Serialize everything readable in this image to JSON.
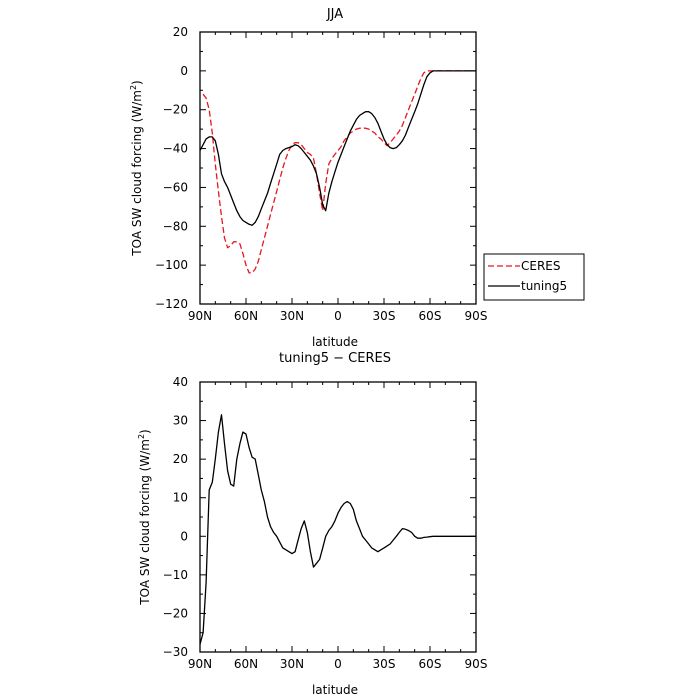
{
  "chart_data": [
    {
      "type": "line",
      "title": "JJA",
      "xlabel": "latitude",
      "ylabel_main": "TOA SW cloud forcing (W/m",
      "ylabel_sup": "2",
      "ylabel_close": ")",
      "xlim": [
        90,
        -90
      ],
      "ylim": [
        -120,
        20
      ],
      "x_tick_values": [
        90,
        60,
        30,
        0,
        -30,
        -60,
        -90
      ],
      "x_tick_labels": [
        "90N",
        "60N",
        "30N",
        "0",
        "30S",
        "60S",
        "90S"
      ],
      "y_tick_values": [
        20,
        0,
        -20,
        -40,
        -60,
        -80,
        -100,
        -120
      ],
      "y_tick_labels": [
        "20",
        "0",
        "−20",
        "−40",
        "−60",
        "−80",
        "−100",
        "−120"
      ],
      "legend_position": "right",
      "series": [
        {
          "name": "CERES",
          "color": "#e8161b",
          "dash": "dashed",
          "x": [
            88,
            86,
            84,
            82,
            80,
            78,
            76,
            74,
            72,
            70,
            68,
            66,
            64,
            62,
            60,
            58,
            56,
            54,
            52,
            50,
            48,
            46,
            44,
            42,
            40,
            38,
            36,
            34,
            32,
            30,
            28,
            26,
            24,
            22,
            20,
            18,
            16,
            14,
            12,
            10,
            8,
            6,
            4,
            2,
            0,
            -2,
            -4,
            -6,
            -8,
            -10,
            -12,
            -14,
            -16,
            -18,
            -20,
            -22,
            -24,
            -26,
            -28,
            -30,
            -32,
            -34,
            -36,
            -38,
            -40,
            -42,
            -44,
            -46,
            -48,
            -50,
            -52,
            -54,
            -56,
            -58,
            -60,
            -62,
            -64,
            -66,
            -68,
            -70,
            -72,
            -74,
            -76,
            -78,
            -80,
            -82,
            -84,
            -86,
            -88
          ],
          "y": [
            -12,
            -14,
            -20,
            -32,
            -48,
            -62,
            -75,
            -86,
            -91,
            -90,
            -88,
            -88,
            -89,
            -94,
            -100,
            -104,
            -104,
            -102,
            -98,
            -92,
            -86,
            -80,
            -74,
            -68,
            -62,
            -56,
            -50,
            -45,
            -41,
            -38,
            -37,
            -37,
            -38,
            -40,
            -42,
            -43,
            -45,
            -53,
            -63,
            -72,
            -58,
            -48,
            -45,
            -43,
            -41,
            -39,
            -36,
            -34,
            -32,
            -31,
            -30,
            -29.5,
            -29.5,
            -29.5,
            -30,
            -31,
            -32,
            -34,
            -35,
            -37,
            -38.5,
            -37,
            -35,
            -33,
            -31,
            -28,
            -24,
            -20,
            -16,
            -12,
            -8,
            -4,
            -1,
            0,
            0,
            0,
            0,
            0,
            0,
            0,
            0,
            0,
            0,
            0,
            0,
            0,
            0,
            0,
            0
          ]
        },
        {
          "name": "tuning5",
          "color": "#000000",
          "dash": "solid",
          "x": [
            90,
            88,
            86,
            84,
            82,
            80,
            78,
            76,
            74,
            72,
            70,
            68,
            66,
            64,
            62,
            60,
            58,
            56,
            54,
            52,
            50,
            48,
            46,
            44,
            42,
            40,
            38,
            36,
            34,
            32,
            30,
            28,
            26,
            24,
            22,
            20,
            18,
            16,
            14,
            12,
            10,
            8,
            6,
            4,
            2,
            0,
            -2,
            -4,
            -6,
            -8,
            -10,
            -12,
            -14,
            -16,
            -18,
            -20,
            -22,
            -24,
            -26,
            -28,
            -30,
            -32,
            -34,
            -36,
            -38,
            -40,
            -42,
            -44,
            -46,
            -48,
            -50,
            -52,
            -54,
            -56,
            -58,
            -60,
            -62,
            -64,
            -66,
            -68,
            -70,
            -72,
            -74,
            -76,
            -78,
            -80,
            -82,
            -84,
            -86,
            -88,
            -90
          ],
          "y": [
            -41,
            -38,
            -35,
            -34,
            -34,
            -36,
            -43,
            -53,
            -57,
            -60,
            -64,
            -68,
            -72,
            -75,
            -77,
            -78,
            -79,
            -79.5,
            -78,
            -75,
            -71,
            -67,
            -63,
            -58,
            -53,
            -48,
            -43,
            -41,
            -40,
            -39.5,
            -39,
            -38,
            -38.5,
            -40,
            -42,
            -44,
            -46,
            -49,
            -53,
            -60,
            -69,
            -72,
            -63,
            -57,
            -52,
            -47,
            -43,
            -39,
            -35,
            -31,
            -28,
            -25,
            -23,
            -22,
            -21,
            -21,
            -22,
            -24,
            -27,
            -31,
            -35,
            -38,
            -39.5,
            -40,
            -39.5,
            -38,
            -36,
            -33,
            -29,
            -25,
            -21,
            -17,
            -12,
            -7,
            -3,
            -1,
            0,
            0,
            0,
            0,
            0,
            0,
            0,
            0,
            0,
            0,
            0,
            0,
            0,
            0,
            0
          ]
        }
      ]
    },
    {
      "type": "line",
      "title": "tuning5 − CERES",
      "xlabel": "latitude",
      "ylabel_main": "TOA SW cloud forcing (W/m",
      "ylabel_sup": "2",
      "ylabel_close": ")",
      "xlim": [
        90,
        -90
      ],
      "ylim": [
        -30,
        40
      ],
      "x_tick_values": [
        90,
        60,
        30,
        0,
        -30,
        -60,
        -90
      ],
      "x_tick_labels": [
        "90N",
        "60N",
        "30N",
        "0",
        "30S",
        "60S",
        "90S"
      ],
      "y_tick_values": [
        40,
        30,
        20,
        10,
        0,
        -10,
        -20,
        -30
      ],
      "y_tick_labels": [
        "40",
        "30",
        "20",
        "10",
        "0",
        "−10",
        "−20",
        "−30"
      ],
      "series": [
        {
          "name": "",
          "color": "#000000",
          "dash": "solid",
          "x": [
            90,
            88,
            86,
            84,
            82,
            80,
            78,
            76,
            74,
            72,
            70,
            68,
            66,
            64,
            62,
            60,
            58,
            56,
            54,
            52,
            50,
            48,
            46,
            44,
            42,
            40,
            38,
            36,
            34,
            32,
            30,
            28,
            26,
            24,
            22,
            20,
            18,
            16,
            14,
            12,
            10,
            8,
            6,
            4,
            2,
            0,
            -2,
            -4,
            -6,
            -8,
            -10,
            -12,
            -14,
            -16,
            -18,
            -20,
            -22,
            -24,
            -26,
            -28,
            -30,
            -32,
            -34,
            -36,
            -38,
            -40,
            -42,
            -44,
            -46,
            -48,
            -50,
            -52,
            -54,
            -56,
            -58,
            -60,
            -62,
            -64,
            -66,
            -68,
            -70,
            -72,
            -74,
            -76,
            -78,
            -80,
            -82,
            -84,
            -86,
            -88,
            -90
          ],
          "y": [
            -28,
            -25,
            -12,
            12,
            14,
            20,
            27,
            31.5,
            24,
            17,
            13.5,
            13,
            20,
            24,
            27,
            26.5,
            23,
            20.5,
            20,
            16,
            12,
            9,
            5,
            2.5,
            1,
            0,
            -1.5,
            -3,
            -3.5,
            -4,
            -4.5,
            -4,
            -1,
            2,
            4,
            1,
            -4,
            -8,
            -7,
            -6,
            -3,
            0,
            1.5,
            2.5,
            4,
            6,
            7.5,
            8.5,
            9,
            8.5,
            7,
            4,
            2,
            0,
            -1,
            -2,
            -3,
            -3.5,
            -4,
            -3.5,
            -3,
            -2.5,
            -2,
            -1,
            0,
            1,
            2,
            1.8,
            1.5,
            1,
            0,
            -0.5,
            -0.5,
            -0.3,
            -0.2,
            -0.1,
            0,
            0,
            0,
            0,
            0,
            0,
            0,
            0,
            0,
            0,
            0,
            0,
            0,
            0,
            0
          ]
        }
      ]
    }
  ]
}
